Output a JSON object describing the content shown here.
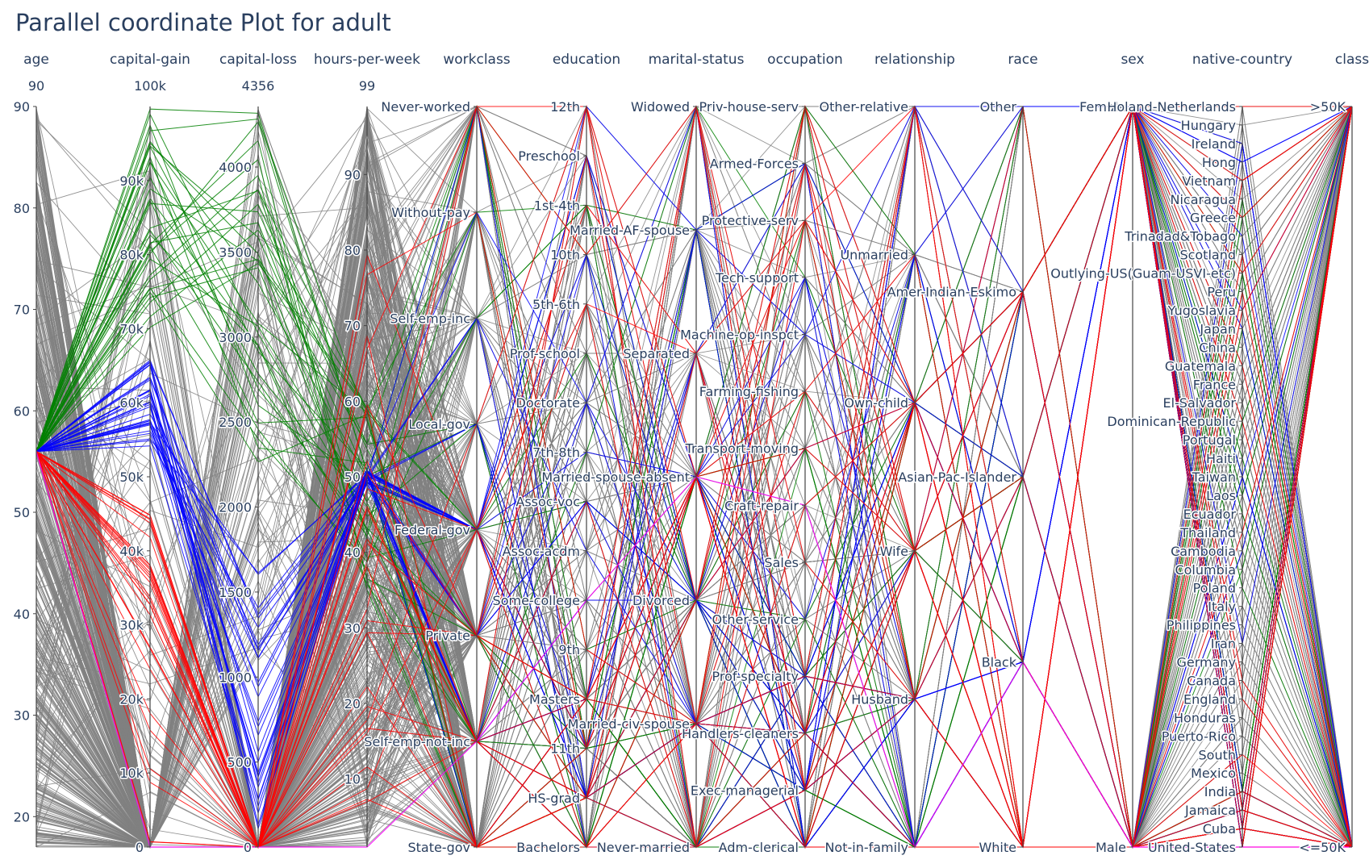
{
  "title": "Parallel coordinate Plot for adult",
  "chart_data": {
    "type": "parallel_coordinates",
    "title": "Parallel coordinate Plot for adult",
    "colors": {
      "default": "#808080",
      "high_capital_gain": "#008000",
      "mid_capital_gain": "#0000ff",
      "capital_loss": "#ff0000",
      "highlight": "#ff00ff"
    },
    "dimensions": [
      {
        "name": "age",
        "type": "numeric",
        "range": [
          17,
          90
        ],
        "range_label": "90",
        "ticks": [
          {
            "v": 20,
            "t": "20"
          },
          {
            "v": 30,
            "t": "30"
          },
          {
            "v": 40,
            "t": "40"
          },
          {
            "v": 50,
            "t": "50"
          },
          {
            "v": 60,
            "t": "60"
          },
          {
            "v": 70,
            "t": "70"
          },
          {
            "v": 80,
            "t": "80"
          },
          {
            "v": 90,
            "t": "90"
          }
        ]
      },
      {
        "name": "capital-gain",
        "type": "numeric",
        "range": [
          0,
          100000
        ],
        "range_label": "100k",
        "ticks": [
          {
            "v": 0,
            "t": "0"
          },
          {
            "v": 10000,
            "t": "10k"
          },
          {
            "v": 20000,
            "t": "20k"
          },
          {
            "v": 30000,
            "t": "30k"
          },
          {
            "v": 40000,
            "t": "40k"
          },
          {
            "v": 50000,
            "t": "50k"
          },
          {
            "v": 60000,
            "t": "60k"
          },
          {
            "v": 70000,
            "t": "70k"
          },
          {
            "v": 80000,
            "t": "80k"
          },
          {
            "v": 90000,
            "t": "90k"
          }
        ]
      },
      {
        "name": "capital-loss",
        "type": "numeric",
        "range": [
          0,
          4356
        ],
        "range_label": "4356",
        "ticks": [
          {
            "v": 0,
            "t": "0"
          },
          {
            "v": 500,
            "t": "500"
          },
          {
            "v": 1000,
            "t": "1000"
          },
          {
            "v": 1500,
            "t": "1500"
          },
          {
            "v": 2000,
            "t": "2000"
          },
          {
            "v": 2500,
            "t": "2500"
          },
          {
            "v": 3000,
            "t": "3000"
          },
          {
            "v": 3500,
            "t": "3500"
          },
          {
            "v": 4000,
            "t": "4000"
          }
        ]
      },
      {
        "name": "hours-per-week",
        "type": "numeric",
        "range": [
          1,
          99
        ],
        "range_label": "99",
        "ticks": [
          {
            "v": 10,
            "t": "10"
          },
          {
            "v": 20,
            "t": "20"
          },
          {
            "v": 30,
            "t": "30"
          },
          {
            "v": 40,
            "t": "40"
          },
          {
            "v": 50,
            "t": "50"
          },
          {
            "v": 60,
            "t": "60"
          },
          {
            "v": 70,
            "t": "70"
          },
          {
            "v": 80,
            "t": "80"
          },
          {
            "v": 90,
            "t": "90"
          }
        ]
      },
      {
        "name": "workclass",
        "type": "categorical",
        "categories": [
          "State-gov",
          "Self-emp-not-inc",
          "Private",
          "Federal-gov",
          "Local-gov",
          "Self-emp-inc",
          "Without-pay",
          "Never-worked"
        ]
      },
      {
        "name": "education",
        "type": "categorical",
        "categories": [
          "Bachelors",
          "HS-grad",
          "11th",
          "Masters",
          "9th",
          "Some-college",
          "Assoc-acdm",
          "Assoc-voc",
          "7th-8th",
          "Doctorate",
          "Prof-school",
          "5th-6th",
          "10th",
          "1st-4th",
          "Preschool",
          "12th"
        ]
      },
      {
        "name": "marital-status",
        "type": "categorical",
        "categories": [
          "Never-married",
          "Married-civ-spouse",
          "Divorced",
          "Married-spouse-absent",
          "Separated",
          "Married-AF-spouse",
          "Widowed"
        ]
      },
      {
        "name": "occupation",
        "type": "categorical",
        "categories": [
          "Adm-clerical",
          "Exec-managerial",
          "Handlers-cleaners",
          "Prof-specialty",
          "Other-service",
          "Sales",
          "Craft-repair",
          "Transport-moving",
          "Farming-fishing",
          "Machine-op-inspct",
          "Tech-support",
          "Protective-serv",
          "Armed-Forces",
          "Priv-house-serv"
        ]
      },
      {
        "name": "relationship",
        "type": "categorical",
        "categories": [
          "Not-in-family",
          "Husband",
          "Wife",
          "Own-child",
          "Unmarried",
          "Other-relative"
        ]
      },
      {
        "name": "race",
        "type": "categorical",
        "categories": [
          "White",
          "Black",
          "Asian-Pac-Islander",
          "Amer-Indian-Eskimo",
          "Other"
        ]
      },
      {
        "name": "sex",
        "type": "categorical",
        "categories": [
          "Male",
          "Female"
        ]
      },
      {
        "name": "native-country",
        "type": "categorical",
        "categories": [
          "United-States",
          "Cuba",
          "Jamaica",
          "India",
          "Mexico",
          "South",
          "Puerto-Rico",
          "Honduras",
          "England",
          "Canada",
          "Germany",
          "Iran",
          "Philippines",
          "Italy",
          "Poland",
          "Columbia",
          "Cambodia",
          "Thailand",
          "Ecuador",
          "Laos",
          "Taiwan",
          "Haiti",
          "Portugal",
          "Dominican-Republic",
          "El-Salvador",
          "France",
          "Guatemala",
          "China",
          "Japan",
          "Yugoslavia",
          "Peru",
          "Outlying-US(Guam-USVI-etc)",
          "Scotland",
          "Trinadad&Tobago",
          "Greece",
          "Nicaragua",
          "Vietnam",
          "Hong",
          "Ireland",
          "Hungary",
          "Holand-Netherlands"
        ]
      },
      {
        "name": "class",
        "type": "categorical",
        "categories": [
          "<=50K",
          ">50K"
        ]
      }
    ]
  }
}
